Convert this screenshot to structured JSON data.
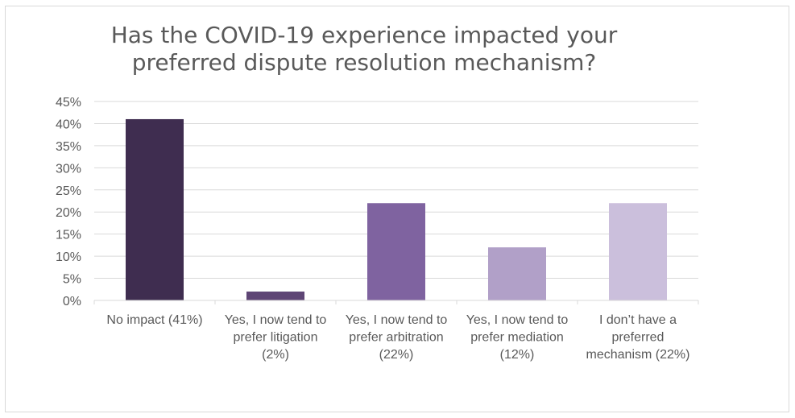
{
  "chart_data": {
    "type": "bar",
    "title": [
      "Has the COVID-19 experience impacted your",
      "preferred dispute resolution mechanism?"
    ],
    "categories": [
      [
        "No impact (41%)"
      ],
      [
        "Yes, I now tend to",
        "prefer litigation",
        "(2%)"
      ],
      [
        "Yes, I now tend to",
        "prefer arbitration",
        "(22%)"
      ],
      [
        "Yes, I now tend to",
        "prefer mediation",
        "(12%)"
      ],
      [
        "I don’t have a",
        "preferred",
        "mechanism (22%)"
      ]
    ],
    "values": [
      41,
      2,
      22,
      12,
      22
    ],
    "colors": [
      "#3f2d50",
      "#5e4575",
      "#7f63a0",
      "#b1a0c8",
      "#cbbfdc"
    ],
    "ylim": [
      0,
      45
    ],
    "ystep": 5,
    "ytick_format": "{v}%",
    "xlabel": "",
    "ylabel": "",
    "grid": true,
    "legend": "none"
  }
}
